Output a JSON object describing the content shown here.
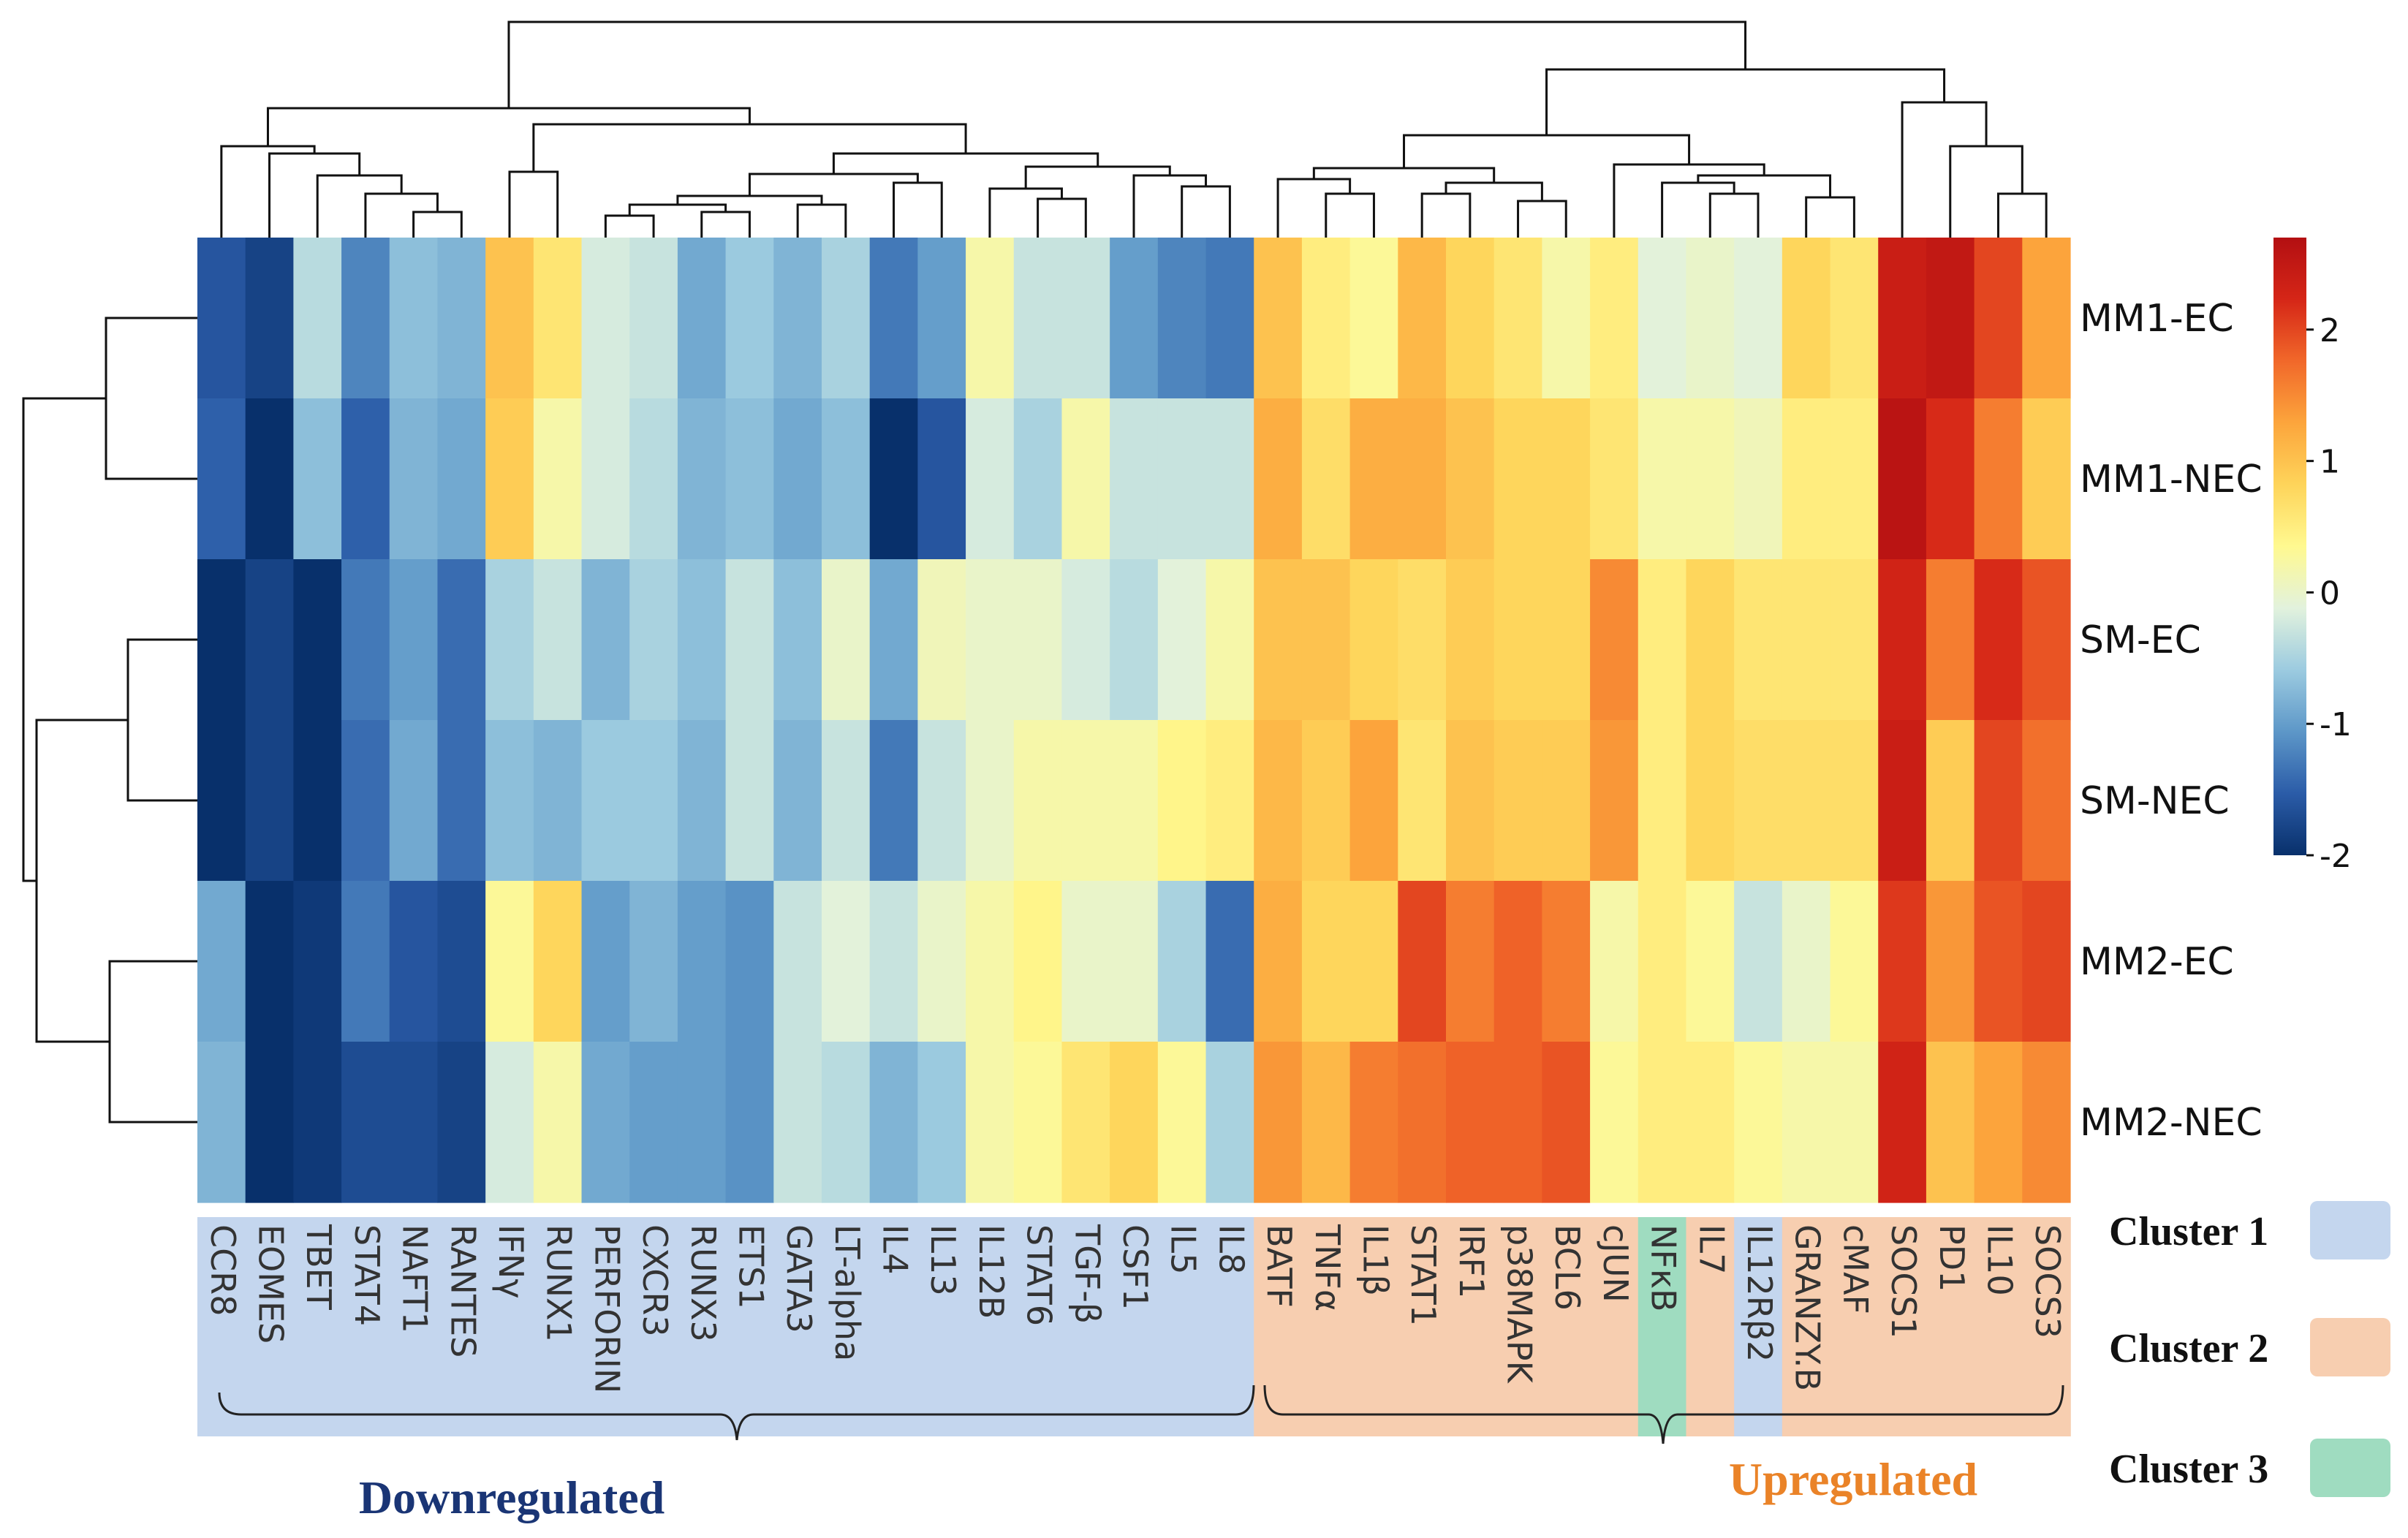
{
  "chart_data": {
    "type": "heatmap",
    "rows": [
      "MM1-EC",
      "MM1-NEC",
      "SM-EC",
      "SM-NEC",
      "MM2-EC",
      "MM2-NEC"
    ],
    "columns": [
      "CCR8",
      "EOMES",
      "TBET",
      "STAT4",
      "NAFT1",
      "RANTES",
      "IFNγ",
      "RUNX1",
      "PERFORIN",
      "CXCR3",
      "RUNX3",
      "ETS1",
      "GATA3",
      "LT-alpha",
      "IL4",
      "IL13",
      "IL12B",
      "STAT6",
      "TGF-β",
      "CSF1",
      "IL5",
      "IL8",
      "BATF",
      "TNFα",
      "IL1β",
      "STAT1",
      "IRF1",
      "p38MAPK",
      "BCL6",
      "cJUN",
      "NFκB",
      "IL7",
      "IL12Rβ2",
      "GRANZY.B",
      "cMAF",
      "SOCS1",
      "PD1",
      "IL10",
      "SOCS3"
    ],
    "column_clusters": [
      1,
      1,
      1,
      1,
      1,
      1,
      1,
      1,
      1,
      1,
      1,
      1,
      1,
      1,
      1,
      1,
      1,
      1,
      1,
      1,
      1,
      1,
      2,
      2,
      2,
      2,
      2,
      2,
      2,
      2,
      3,
      2,
      1,
      2,
      2,
      2,
      2,
      2,
      2
    ],
    "values": [
      [
        -1.6,
        -1.8,
        -0.4,
        -1.2,
        -0.7,
        -0.8,
        1.0,
        0.6,
        -0.2,
        -0.3,
        -0.9,
        -0.6,
        -0.8,
        -0.5,
        -1.3,
        -1.0,
        0.2,
        -0.3,
        -0.3,
        -1.0,
        -1.2,
        -1.3,
        1.0,
        0.5,
        0.3,
        1.1,
        0.8,
        0.6,
        0.2,
        0.5,
        -0.1,
        0.0,
        -0.1,
        0.8,
        0.6,
        2.4,
        2.5,
        2.0,
        1.3
      ],
      [
        -1.5,
        -2.0,
        -0.7,
        -1.5,
        -0.8,
        -0.9,
        0.9,
        0.2,
        -0.2,
        -0.4,
        -0.8,
        -0.7,
        -0.9,
        -0.7,
        -2.1,
        -1.6,
        -0.2,
        -0.5,
        0.2,
        -0.3,
        -0.3,
        -0.3,
        1.2,
        0.7,
        1.2,
        1.2,
        1.0,
        0.8,
        0.8,
        0.6,
        0.2,
        0.2,
        0.1,
        0.5,
        0.5,
        2.6,
        2.2,
        1.6,
        0.9
      ],
      [
        -2.2,
        -1.8,
        -2.1,
        -1.3,
        -1.0,
        -1.4,
        -0.5,
        -0.3,
        -0.8,
        -0.5,
        -0.7,
        -0.3,
        -0.7,
        0.0,
        -0.9,
        0.1,
        0.0,
        0.0,
        -0.2,
        -0.4,
        -0.1,
        0.2,
        1.0,
        1.0,
        0.8,
        0.7,
        0.9,
        0.8,
        0.8,
        1.5,
        0.5,
        0.8,
        0.6,
        0.6,
        0.6,
        2.3,
        1.6,
        2.2,
        1.9
      ],
      [
        -2.0,
        -1.8,
        -2.1,
        -1.4,
        -0.9,
        -1.4,
        -0.7,
        -0.8,
        -0.6,
        -0.6,
        -0.8,
        -0.3,
        -0.8,
        -0.3,
        -1.3,
        -0.3,
        0.0,
        0.2,
        0.2,
        0.2,
        0.4,
        0.5,
        1.1,
        0.9,
        1.3,
        0.6,
        1.0,
        0.9,
        0.9,
        1.4,
        0.5,
        0.8,
        0.7,
        0.7,
        0.7,
        2.4,
        0.9,
        2.0,
        1.7
      ],
      [
        -0.9,
        -2.0,
        -1.9,
        -1.3,
        -1.6,
        -1.7,
        0.3,
        0.8,
        -1.0,
        -0.8,
        -1.0,
        -1.1,
        -0.3,
        -0.1,
        -0.3,
        0.0,
        0.2,
        0.4,
        0.0,
        0.0,
        -0.5,
        -1.4,
        1.2,
        0.8,
        0.8,
        2.0,
        1.6,
        1.8,
        1.6,
        0.2,
        0.5,
        0.3,
        -0.3,
        0.0,
        0.3,
        2.1,
        1.4,
        1.9,
        2.0
      ],
      [
        -0.8,
        -2.0,
        -1.9,
        -1.7,
        -1.7,
        -1.8,
        -0.2,
        0.2,
        -0.9,
        -1.0,
        -1.0,
        -1.1,
        -0.3,
        -0.4,
        -0.8,
        -0.6,
        0.2,
        0.3,
        0.6,
        0.8,
        0.3,
        -0.5,
        1.4,
        1.1,
        1.6,
        1.7,
        1.8,
        1.8,
        1.9,
        0.3,
        0.5,
        0.5,
        0.3,
        0.2,
        0.2,
        2.3,
        1.0,
        1.3,
        1.5
      ]
    ],
    "colorbar": {
      "min": -2,
      "max": 2.7,
      "ticks": [
        "2",
        "1",
        "0",
        "-1",
        "-2"
      ],
      "tick_values": [
        2,
        1,
        0,
        -1,
        -2
      ]
    },
    "color_scale": [
      "#08306b",
      "#2b5ca8",
      "#5d97c8",
      "#9ccbe0",
      "#e2f2dd",
      "#fff990",
      "#fed45a",
      "#fca53c",
      "#f1682a",
      "#d52617",
      "#b30f12"
    ],
    "legend": [
      {
        "label": "Cluster 1",
        "color": "#c4d6ee"
      },
      {
        "label": "Cluster 2",
        "color": "#f7ceb0"
      },
      {
        "label": "Cluster 3",
        "color": "#9fdcc0"
      }
    ],
    "group_labels": {
      "down": "Downregulated",
      "up": "Upregulated"
    },
    "group_colors": {
      "down": "#1a3575",
      "up": "#ea8328"
    }
  }
}
